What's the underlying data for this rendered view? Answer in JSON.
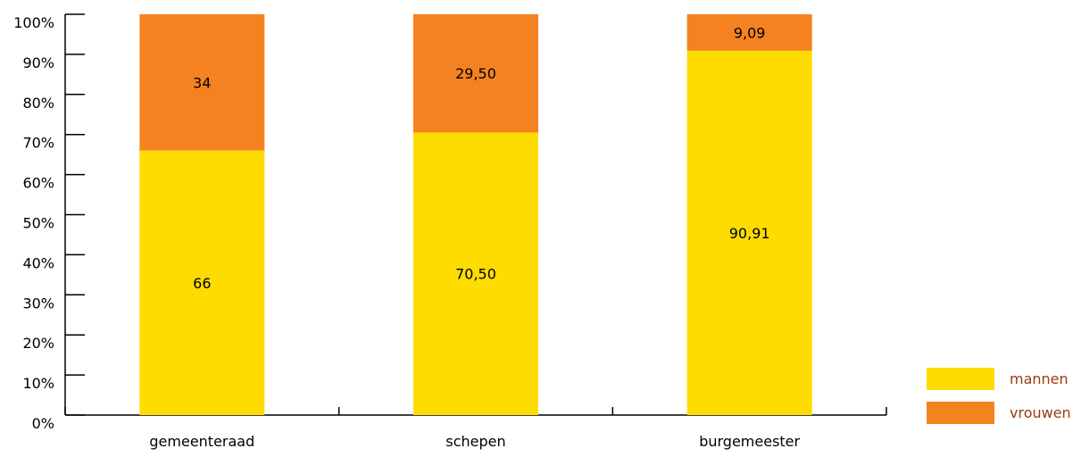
{
  "chart_data": {
    "type": "bar",
    "stacked": true,
    "categories": [
      "gemeenteraad",
      "schepen",
      "burgemeester"
    ],
    "series": [
      {
        "name": "mannen",
        "values": [
          66,
          70.5,
          90.91
        ],
        "labels": [
          "66",
          "70,50",
          "90,91"
        ],
        "color": "#ffdc00"
      },
      {
        "name": "vrouwen",
        "values": [
          34,
          29.5,
          9.09
        ],
        "labels": [
          "34",
          "29,50",
          "9,09"
        ],
        "color": "#f58220"
      }
    ],
    "yticks": [
      "0%",
      "10%",
      "20%",
      "30%",
      "40%",
      "50%",
      "60%",
      "70%",
      "80%",
      "90%",
      "100%"
    ],
    "ylim": [
      0,
      100
    ],
    "legend_position": "bottom-right",
    "grid": false
  }
}
